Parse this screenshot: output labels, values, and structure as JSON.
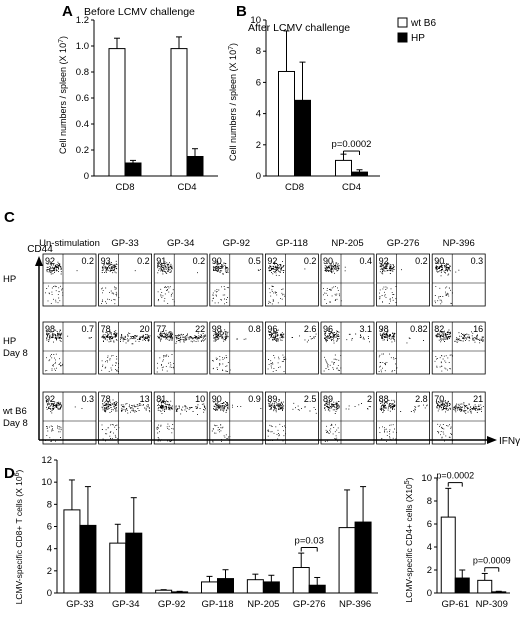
{
  "panels": {
    "A": {
      "letter": "A",
      "title": "Before LCMV challenge",
      "ylabel": "Cell numbers / spleen (X 10",
      "ylabel_exp": "7",
      "ylabel_close": ")",
      "yticks": [
        "0",
        "0.2",
        "0.4",
        "0.6",
        "0.8",
        "1.0",
        "1.2"
      ]
    },
    "B": {
      "letter": "B",
      "title": "After LCMV challenge",
      "ylabel": "Cell numbers / spleen (X 10",
      "ylabel_exp": "7",
      "ylabel_close": ")",
      "yticks": [
        "0",
        "2",
        "4",
        "6",
        "8",
        "10"
      ],
      "legend": [
        "wt B6",
        "HP"
      ],
      "annotation": "p=0.0002"
    },
    "C": {
      "letter": "C",
      "columns": [
        "Un-stimulation",
        "GP-33",
        "GP-34",
        "GP-92",
        "GP-118",
        "NP-205",
        "GP-276",
        "NP-396"
      ],
      "rows": [
        {
          "label1": "HP",
          "label2": "",
          "q_left": [
            "92",
            "93",
            "91",
            "90",
            "92",
            "90",
            "92",
            "90"
          ],
          "q_right": [
            "0.2",
            "0.2",
            "0.2",
            "0.5",
            "0.2",
            "0.4",
            "0.2",
            "0.3"
          ]
        },
        {
          "label1": "HP",
          "label2": "Day 8",
          "q_left": [
            "98",
            "78",
            "77",
            "98",
            "96",
            "96",
            "98",
            "82"
          ],
          "q_right": [
            "0.7",
            "20",
            "22",
            "0.8",
            "2.6",
            "3.1",
            "0.82",
            "16"
          ]
        },
        {
          "label1": "wt B6",
          "label2": "Day 8",
          "q_left": [
            "92",
            "78",
            "81",
            "90",
            "89",
            "89",
            "88",
            "70"
          ],
          "q_right": [
            "0.3",
            "13",
            "10",
            "0.9",
            "2.5",
            "2",
            "2.8",
            "21"
          ]
        }
      ],
      "ylabel": "CD44",
      "xlabel": "IFNγ"
    },
    "D": {
      "letter": "D",
      "ylabel_left": "LCMV-specific CD8+ T cells (X 10",
      "ylabel_left_exp": "6",
      "ylabel_left_close": ")",
      "yticks_left": [
        "0",
        "2",
        "4",
        "6",
        "8",
        "10",
        "12"
      ],
      "annotation_left": "p=0.03",
      "ylabel_right": "LCMV-specific CD4+ cells (X10",
      "ylabel_right_exp": "5",
      "ylabel_right_close": ")",
      "yticks_right": [
        "0",
        "2",
        "4",
        "6",
        "8",
        "10"
      ],
      "annotations_right": [
        "p=0.0002",
        "p=0.0009"
      ]
    }
  },
  "colors": {
    "wt": "#ffffff",
    "hp": "#000000",
    "axis": "#000000"
  },
  "chart_data": [
    {
      "type": "bar",
      "title": "Before LCMV challenge",
      "ylabel": "Cell numbers / spleen (X 10^7)",
      "categories": [
        "CD8",
        "CD4"
      ],
      "ylim": [
        0,
        1.2
      ],
      "series": [
        {
          "name": "wt B6",
          "values": [
            0.98,
            0.98
          ],
          "errors": [
            0.08,
            0.09
          ]
        },
        {
          "name": "HP",
          "values": [
            0.1,
            0.15
          ],
          "errors": [
            0.02,
            0.06
          ]
        }
      ]
    },
    {
      "type": "bar",
      "title": "After LCMV challenge",
      "ylabel": "Cell numbers / spleen (X 10^7)",
      "categories": [
        "CD8",
        "CD4"
      ],
      "ylim": [
        0,
        10
      ],
      "legend": "top-right",
      "series": [
        {
          "name": "wt B6",
          "values": [
            6.7,
            1.0
          ],
          "errors": [
            2.6,
            0.4
          ]
        },
        {
          "name": "HP",
          "values": [
            4.85,
            0.25
          ],
          "errors": [
            2.45,
            0.15
          ]
        }
      ],
      "annotations": [
        {
          "category": "CD4",
          "text": "p=0.0002"
        }
      ]
    },
    {
      "type": "bar",
      "ylabel": "LCMV-specific CD8+ T cells (X 10^6)",
      "categories": [
        "GP-33",
        "GP-34",
        "GP-92",
        "GP-118",
        "NP-205",
        "GP-276",
        "NP-396"
      ],
      "ylim": [
        0,
        12
      ],
      "series": [
        {
          "name": "wt B6",
          "values": [
            7.5,
            4.5,
            0.25,
            1.0,
            1.2,
            2.3,
            5.9
          ],
          "errors": [
            2.7,
            1.7,
            0.05,
            0.5,
            0.5,
            1.3,
            3.4
          ]
        },
        {
          "name": "HP",
          "values": [
            6.1,
            5.4,
            0.1,
            1.3,
            1.0,
            0.7,
            6.4
          ],
          "errors": [
            3.5,
            3.2,
            0.05,
            0.8,
            0.6,
            0.7,
            3.2
          ]
        }
      ],
      "annotations": [
        {
          "category": "GP-276",
          "text": "p=0.03"
        }
      ]
    },
    {
      "type": "bar",
      "ylabel": "LCMV-specific CD4+ cells (X10^5)",
      "categories": [
        "GP-61",
        "NP-309"
      ],
      "ylim": [
        0,
        10
      ],
      "series": [
        {
          "name": "wt B6",
          "values": [
            6.6,
            1.1
          ],
          "errors": [
            2.5,
            0.6
          ]
        },
        {
          "name": "HP",
          "values": [
            1.3,
            0.1
          ],
          "errors": [
            0.7,
            0.05
          ]
        }
      ],
      "annotations": [
        {
          "category": "GP-61",
          "text": "p=0.0002"
        },
        {
          "category": "NP-309",
          "text": "p=0.0009"
        }
      ]
    }
  ]
}
